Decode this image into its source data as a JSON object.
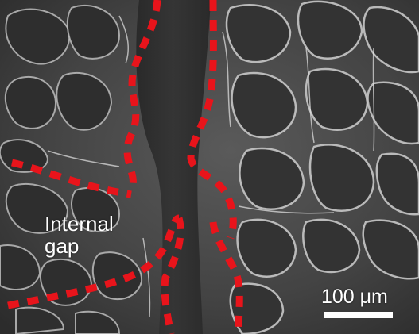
{
  "image": {
    "annotation_label_lines": [
      "Internal",
      "gap"
    ],
    "scale_bar_label": "100 μm",
    "colors": {
      "dash_line": "#e8141b",
      "label_text": "#ffffff",
      "scale_bar": "#ffffff",
      "background_gray": "#3f3f3f"
    }
  }
}
